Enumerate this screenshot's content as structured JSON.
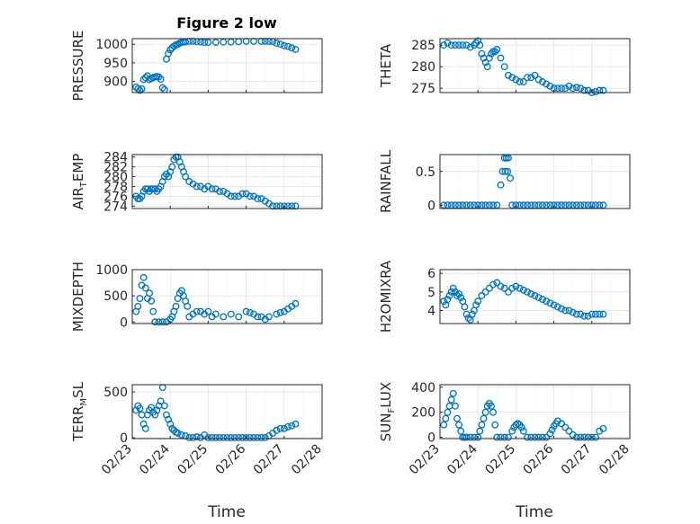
{
  "title": "Figure 2 low",
  "xlabel": "Time",
  "xtick_labels": [
    "02/23",
    "02/24",
    "02/25",
    "02/26",
    "02/27",
    "02/28"
  ],
  "colors": {
    "marker": "#0072bd",
    "axis": "#262626",
    "grid": "#dcdcdc"
  },
  "chart_data": [
    {
      "id": "pressure",
      "type": "scatter",
      "ylabel": "PRESSURE",
      "ylim": [
        870,
        1015
      ],
      "yticks": [
        900,
        950,
        1000
      ],
      "x": [
        0.1,
        0.15,
        0.2,
        0.25,
        0.3,
        0.35,
        0.4,
        0.45,
        0.5,
        0.55,
        0.6,
        0.65,
        0.7,
        0.75,
        0.8,
        0.85,
        0.9,
        0.95,
        1.0,
        1.05,
        1.1,
        1.15,
        1.2,
        1.25,
        1.3,
        1.35,
        1.4,
        1.5,
        1.6,
        1.7,
        1.8,
        1.9,
        2.0,
        2.2,
        2.4,
        2.6,
        2.8,
        3.0,
        3.2,
        3.4,
        3.5,
        3.6,
        3.7,
        3.8,
        3.9,
        4.0,
        4.1,
        4.2,
        4.3
      ],
      "y": [
        885,
        880,
        876,
        880,
        905,
        910,
        915,
        905,
        908,
        910,
        912,
        913,
        912,
        906,
        883,
        878,
        960,
        975,
        985,
        990,
        995,
        998,
        1000,
        1003,
        1005,
        1006,
        1006,
        1008,
        1008,
        1007,
        1006,
        1005,
        1005,
        1005,
        1006,
        1006,
        1007,
        1008,
        1008,
        1008,
        1008,
        1008,
        1007,
        1003,
        1000,
        996,
        994,
        990,
        986
      ]
    },
    {
      "id": "theta",
      "type": "scatter",
      "ylabel": "THETA",
      "ylim": [
        274,
        286.5
      ],
      "yticks": [
        275,
        280,
        285
      ],
      "x": [
        0.1,
        0.2,
        0.3,
        0.4,
        0.5,
        0.6,
        0.7,
        0.8,
        0.9,
        0.95,
        1.0,
        1.05,
        1.1,
        1.15,
        1.2,
        1.25,
        1.3,
        1.35,
        1.4,
        1.45,
        1.5,
        1.6,
        1.7,
        1.8,
        1.9,
        2.0,
        2.1,
        2.2,
        2.3,
        2.4,
        2.5,
        2.6,
        2.7,
        2.8,
        2.9,
        3.0,
        3.1,
        3.2,
        3.3,
        3.4,
        3.5,
        3.6,
        3.7,
        3.8,
        3.9,
        4.0,
        4.1,
        4.2,
        4.3
      ],
      "y": [
        285,
        285.5,
        285,
        285,
        285,
        285,
        285,
        284.5,
        285,
        285.5,
        286,
        285,
        283,
        282,
        281,
        280,
        282,
        283,
        283.5,
        283.5,
        284,
        282,
        280,
        278,
        277.5,
        277,
        276.5,
        276.5,
        277.5,
        277.5,
        278,
        277,
        276.5,
        276,
        275.5,
        275,
        275,
        275,
        275,
        275.5,
        275,
        275.2,
        275,
        274.5,
        274.5,
        274,
        274.2,
        274.5,
        274.5
      ]
    },
    {
      "id": "air_temp",
      "type": "scatter",
      "ylabel_main": "AIR",
      "ylabel_sub": "T",
      "ylabel_rest": "EMP",
      "ylim": [
        273.5,
        284.5
      ],
      "yticks": [
        274,
        276,
        278,
        280,
        282,
        284
      ],
      "x": [
        0.1,
        0.15,
        0.2,
        0.25,
        0.3,
        0.35,
        0.4,
        0.45,
        0.5,
        0.55,
        0.6,
        0.65,
        0.7,
        0.75,
        0.8,
        0.85,
        0.9,
        0.95,
        1.0,
        1.05,
        1.1,
        1.15,
        1.2,
        1.25,
        1.3,
        1.35,
        1.4,
        1.5,
        1.6,
        1.7,
        1.8,
        1.9,
        2.0,
        2.1,
        2.2,
        2.3,
        2.4,
        2.5,
        2.6,
        2.7,
        2.8,
        2.9,
        3.0,
        3.1,
        3.2,
        3.3,
        3.4,
        3.5,
        3.6,
        3.7,
        3.8,
        3.9,
        4.0,
        4.1,
        4.2,
        4.3
      ],
      "y": [
        276,
        275.5,
        275.5,
        276,
        277,
        277.5,
        277.5,
        277,
        277.5,
        277.5,
        277.5,
        277,
        277.5,
        278,
        279,
        280,
        280.5,
        280,
        281,
        282,
        283.5,
        284,
        284,
        283,
        282,
        281,
        280,
        279,
        278.5,
        278,
        278,
        277.5,
        278,
        277.5,
        277.5,
        277,
        277,
        276.5,
        276,
        276,
        276,
        276.5,
        276.5,
        276,
        276,
        275.5,
        275.5,
        275,
        274.5,
        274,
        274,
        274,
        274,
        274,
        274,
        274
      ]
    },
    {
      "id": "rainfall",
      "type": "scatter",
      "ylabel": "RAINFALL",
      "ylim": [
        -0.05,
        0.75
      ],
      "yticks": [
        0,
        0.5
      ],
      "x": [
        0.1,
        0.2,
        0.3,
        0.4,
        0.5,
        0.6,
        0.7,
        0.8,
        0.9,
        1.0,
        1.1,
        1.2,
        1.3,
        1.4,
        1.5,
        1.6,
        1.65,
        1.7,
        1.72,
        1.75,
        1.78,
        1.8,
        1.85,
        1.9,
        2.0,
        2.1,
        2.2,
        2.3,
        2.4,
        2.5,
        2.6,
        2.7,
        2.8,
        2.9,
        3.0,
        3.1,
        3.2,
        3.3,
        3.4,
        3.5,
        3.6,
        3.7,
        3.8,
        3.9,
        4.0,
        4.1,
        4.2,
        4.3
      ],
      "y": [
        0,
        0,
        0,
        0,
        0,
        0,
        0,
        0,
        0,
        0,
        0,
        0,
        0,
        0,
        0,
        0.3,
        0.5,
        0.7,
        0.5,
        0.7,
        0.5,
        0.7,
        0.4,
        0,
        0,
        0,
        0,
        0,
        0,
        0,
        0,
        0,
        0,
        0,
        0,
        0,
        0,
        0,
        0,
        0,
        0,
        0,
        0,
        0,
        0,
        0,
        0,
        0
      ]
    },
    {
      "id": "mixdepth",
      "type": "scatter",
      "ylabel": "MIXDEPTH",
      "ylim": [
        -30,
        1000
      ],
      "yticks": [
        0,
        500,
        1000
      ],
      "x": [
        0.1,
        0.15,
        0.2,
        0.25,
        0.3,
        0.35,
        0.4,
        0.45,
        0.5,
        0.55,
        0.6,
        0.7,
        0.8,
        0.9,
        1.0,
        1.05,
        1.1,
        1.15,
        1.2,
        1.25,
        1.3,
        1.35,
        1.4,
        1.45,
        1.5,
        1.6,
        1.7,
        1.8,
        1.9,
        2.0,
        2.1,
        2.2,
        2.4,
        2.6,
        2.8,
        3.0,
        3.1,
        3.2,
        3.3,
        3.4,
        3.5,
        3.6,
        3.8,
        3.9,
        4.0,
        4.1,
        4.2,
        4.3
      ],
      "y": [
        200,
        300,
        450,
        700,
        850,
        650,
        450,
        550,
        400,
        200,
        0,
        0,
        0,
        0,
        50,
        100,
        200,
        300,
        450,
        550,
        600,
        500,
        400,
        300,
        100,
        150,
        200,
        200,
        150,
        200,
        100,
        150,
        100,
        150,
        100,
        200,
        180,
        150,
        100,
        100,
        50,
        100,
        150,
        180,
        200,
        250,
        300,
        350
      ]
    },
    {
      "id": "h2omixra",
      "type": "scatter",
      "ylabel": "H2OMIXRA",
      "ylim": [
        3.3,
        6.2
      ],
      "yticks": [
        4,
        5,
        6
      ],
      "x": [
        0.1,
        0.15,
        0.2,
        0.25,
        0.3,
        0.35,
        0.4,
        0.45,
        0.5,
        0.55,
        0.6,
        0.65,
        0.7,
        0.75,
        0.8,
        0.85,
        0.9,
        0.95,
        1.0,
        1.1,
        1.2,
        1.3,
        1.4,
        1.5,
        1.6,
        1.7,
        1.8,
        1.9,
        2.0,
        2.1,
        2.2,
        2.3,
        2.4,
        2.5,
        2.6,
        2.7,
        2.8,
        2.9,
        3.0,
        3.1,
        3.2,
        3.3,
        3.4,
        3.5,
        3.6,
        3.7,
        3.8,
        3.9,
        4.0,
        4.1,
        4.2,
        4.3
      ],
      "y": [
        4.5,
        4.3,
        4.6,
        4.8,
        5.0,
        5.2,
        5.0,
        4.8,
        4.9,
        4.7,
        4.5,
        4.2,
        3.8,
        3.6,
        3.5,
        3.8,
        4.0,
        4.3,
        4.5,
        4.8,
        5.0,
        5.2,
        5.4,
        5.5,
        5.3,
        5.2,
        5.0,
        5.2,
        5.3,
        5.2,
        5.1,
        5.0,
        4.9,
        4.8,
        4.7,
        4.6,
        4.5,
        4.4,
        4.3,
        4.2,
        4.1,
        4.0,
        4.0,
        3.9,
        3.8,
        3.8,
        3.7,
        3.7,
        3.8,
        3.8,
        3.8,
        3.8
      ]
    },
    {
      "id": "terr_msl",
      "type": "scatter",
      "ylabel_main": "TERR",
      "ylabel_sub": "M",
      "ylabel_rest": "SL",
      "ylim": [
        -10,
        580
      ],
      "yticks": [
        0,
        500
      ],
      "x": [
        0.1,
        0.15,
        0.2,
        0.25,
        0.3,
        0.35,
        0.4,
        0.45,
        0.5,
        0.55,
        0.6,
        0.65,
        0.7,
        0.75,
        0.8,
        0.85,
        0.9,
        0.95,
        1.0,
        1.05,
        1.1,
        1.15,
        1.2,
        1.3,
        1.4,
        1.5,
        1.6,
        1.7,
        1.8,
        1.9,
        2.0,
        2.1,
        2.2,
        2.3,
        2.4,
        2.5,
        2.6,
        2.7,
        2.8,
        2.9,
        3.0,
        3.1,
        3.2,
        3.3,
        3.4,
        3.5,
        3.6,
        3.7,
        3.8,
        3.9,
        4.0,
        4.1,
        4.2,
        4.3
      ],
      "y": [
        300,
        350,
        320,
        250,
        150,
        100,
        250,
        300,
        330,
        280,
        250,
        300,
        350,
        400,
        550,
        350,
        250,
        200,
        150,
        100,
        80,
        60,
        50,
        30,
        20,
        0,
        0,
        10,
        0,
        30,
        0,
        0,
        0,
        0,
        0,
        0,
        0,
        0,
        0,
        0,
        0,
        0,
        0,
        0,
        0,
        0,
        20,
        50,
        80,
        100,
        100,
        120,
        130,
        150
      ]
    },
    {
      "id": "sun_flux",
      "type": "scatter",
      "ylabel_main": "SUN",
      "ylabel_sub": "F",
      "ylabel_rest": "LUX",
      "ylim": [
        -10,
        420
      ],
      "yticks": [
        0,
        200,
        400
      ],
      "x": [
        0.1,
        0.15,
        0.2,
        0.25,
        0.3,
        0.35,
        0.4,
        0.45,
        0.5,
        0.55,
        0.6,
        0.65,
        0.7,
        0.8,
        0.9,
        1.0,
        1.05,
        1.1,
        1.15,
        1.2,
        1.25,
        1.3,
        1.35,
        1.4,
        1.45,
        1.5,
        1.6,
        1.7,
        1.8,
        1.9,
        1.95,
        2.0,
        2.05,
        2.1,
        2.15,
        2.2,
        2.3,
        2.4,
        2.5,
        2.6,
        2.7,
        2.8,
        2.9,
        2.95,
        3.0,
        3.05,
        3.1,
        3.2,
        3.3,
        3.4,
        3.5,
        3.6,
        3.7,
        3.8,
        3.9,
        4.0,
        4.1,
        4.2,
        4.3
      ],
      "y": [
        100,
        150,
        200,
        250,
        300,
        350,
        250,
        150,
        100,
        50,
        0,
        0,
        0,
        0,
        0,
        0,
        50,
        100,
        150,
        200,
        250,
        270,
        250,
        200,
        100,
        0,
        0,
        0,
        0,
        50,
        80,
        100,
        110,
        100,
        80,
        50,
        0,
        0,
        0,
        0,
        0,
        0,
        30,
        60,
        90,
        110,
        130,
        110,
        80,
        50,
        20,
        0,
        0,
        0,
        0,
        0,
        0,
        50,
        70
      ]
    }
  ]
}
